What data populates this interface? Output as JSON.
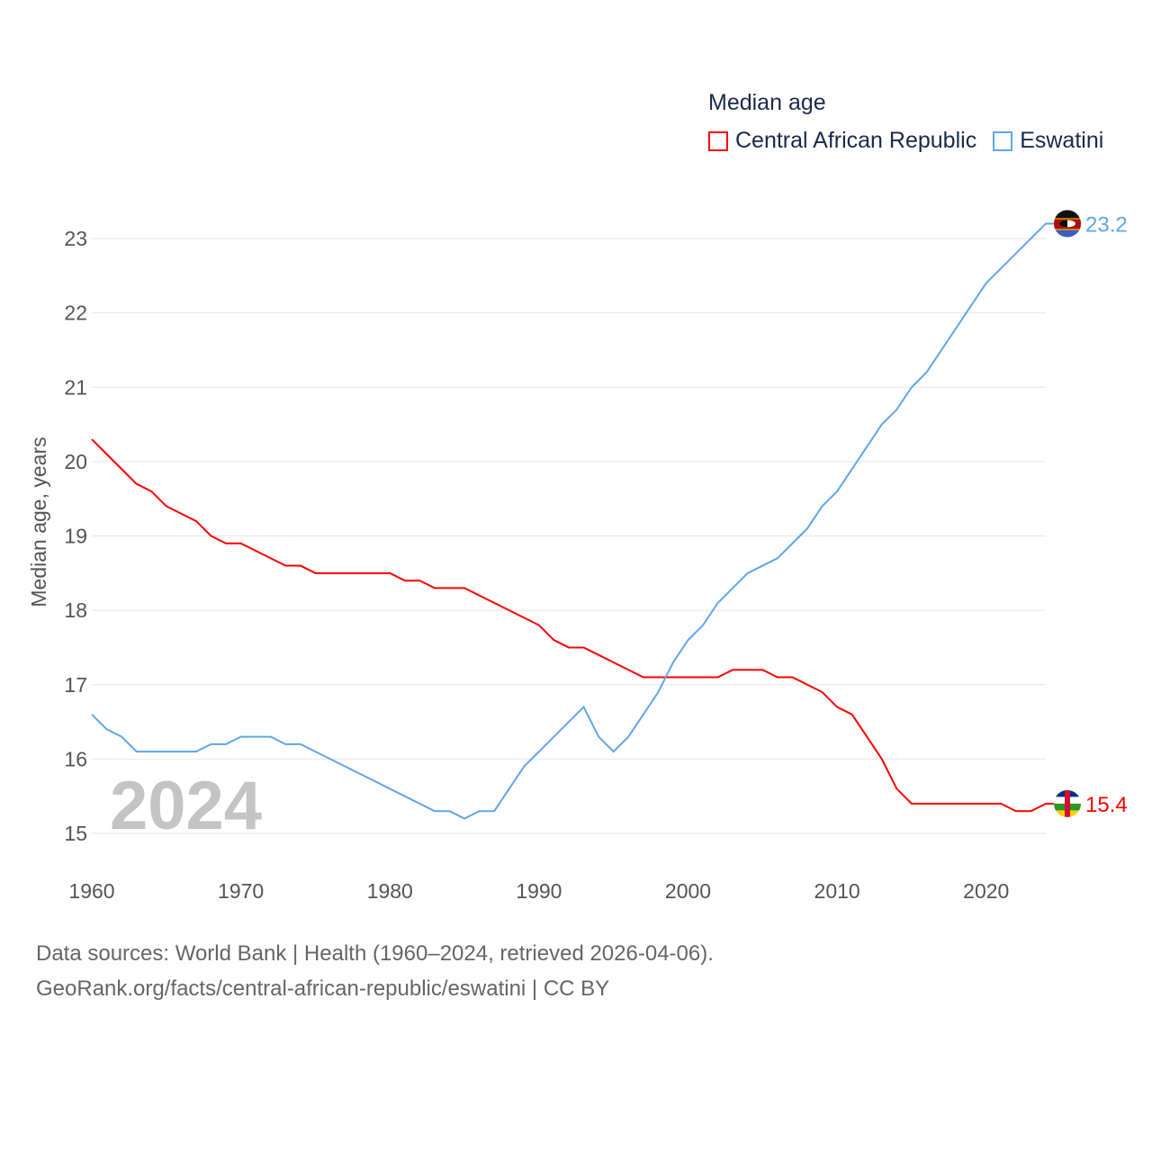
{
  "chart_data": {
    "type": "line",
    "title": "Median age",
    "xlabel": "",
    "ylabel": "Median age, years",
    "xlim": [
      1960,
      2024
    ],
    "ylim": [
      15,
      23
    ],
    "yticks": [
      15,
      16,
      17,
      18,
      19,
      20,
      21,
      22,
      23
    ],
    "xticks": [
      1960,
      1970,
      1980,
      1990,
      2000,
      2010,
      2020
    ],
    "grid": true,
    "legend_position": "top-right",
    "year_label": "2024",
    "x": [
      1960,
      1961,
      1962,
      1963,
      1964,
      1965,
      1966,
      1967,
      1968,
      1969,
      1970,
      1971,
      1972,
      1973,
      1974,
      1975,
      1976,
      1977,
      1978,
      1979,
      1980,
      1981,
      1982,
      1983,
      1984,
      1985,
      1986,
      1987,
      1988,
      1989,
      1990,
      1991,
      1992,
      1993,
      1994,
      1995,
      1996,
      1997,
      1998,
      1999,
      2000,
      2001,
      2002,
      2003,
      2004,
      2005,
      2006,
      2007,
      2008,
      2009,
      2010,
      2011,
      2012,
      2013,
      2014,
      2015,
      2016,
      2017,
      2018,
      2019,
      2020,
      2021,
      2022,
      2023,
      2024
    ],
    "series": [
      {
        "name": "Central African Republic",
        "color": "#ff0000",
        "end_label": "15.4",
        "values": [
          20.3,
          20.1,
          19.9,
          19.7,
          19.6,
          19.4,
          19.3,
          19.2,
          19.0,
          18.9,
          18.9,
          18.8,
          18.7,
          18.6,
          18.6,
          18.5,
          18.5,
          18.5,
          18.5,
          18.5,
          18.5,
          18.4,
          18.4,
          18.3,
          18.3,
          18.3,
          18.2,
          18.1,
          18.0,
          17.9,
          17.8,
          17.6,
          17.5,
          17.5,
          17.4,
          17.3,
          17.2,
          17.1,
          17.1,
          17.1,
          17.1,
          17.1,
          17.1,
          17.2,
          17.2,
          17.2,
          17.1,
          17.1,
          17.0,
          16.9,
          16.7,
          16.6,
          16.3,
          16.0,
          15.6,
          15.4,
          15.4,
          15.4,
          15.4,
          15.4,
          15.4,
          15.4,
          15.3,
          15.3,
          15.4
        ]
      },
      {
        "name": "Eswatini",
        "color": "#5fa6ea",
        "end_label": "23.2",
        "values": [
          16.6,
          16.4,
          16.3,
          16.1,
          16.1,
          16.1,
          16.1,
          16.1,
          16.2,
          16.2,
          16.3,
          16.3,
          16.3,
          16.2,
          16.2,
          16.1,
          16.0,
          15.9,
          15.8,
          15.7,
          15.6,
          15.5,
          15.4,
          15.3,
          15.3,
          15.2,
          15.3,
          15.3,
          15.6,
          15.9,
          16.1,
          16.3,
          16.5,
          16.7,
          16.3,
          16.1,
          16.3,
          16.6,
          16.9,
          17.3,
          17.6,
          17.8,
          18.1,
          18.3,
          18.5,
          18.6,
          18.7,
          18.9,
          19.1,
          19.4,
          19.6,
          19.9,
          20.2,
          20.5,
          20.7,
          21.0,
          21.2,
          21.5,
          21.8,
          22.1,
          22.4,
          22.6,
          22.8,
          23.0,
          23.2
        ]
      }
    ]
  },
  "footer": {
    "line1": "Data sources: World Bank | Health (1960–2024, retrieved 2026-04-06).",
    "line2": "GeoRank.org/facts/central-african-republic/eswatini | CC BY"
  }
}
